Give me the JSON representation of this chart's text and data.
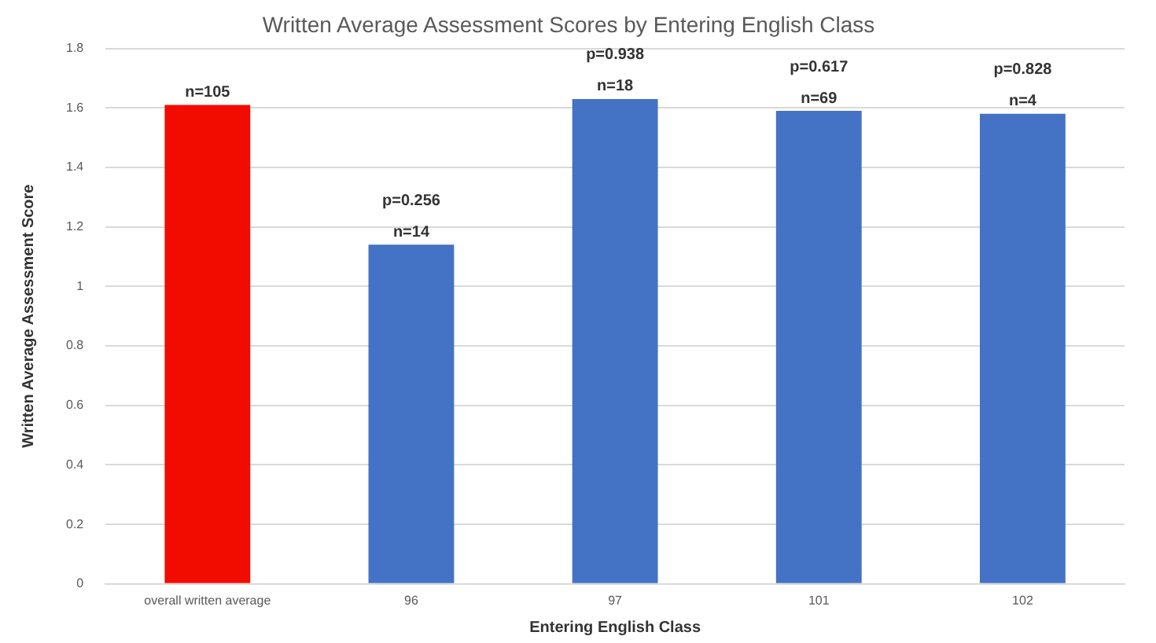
{
  "chart_data": {
    "type": "bar",
    "title": "Written Average Assessment Scores by Entering English Class",
    "xlabel": "Entering English Class",
    "ylabel": "Written Average Assessment Score",
    "categories": [
      "overall written average",
      "96",
      "97",
      "101",
      "102"
    ],
    "values": [
      1.61,
      1.14,
      1.63,
      1.59,
      1.58
    ],
    "colors": [
      "#f20c00",
      "#4472c4",
      "#4472c4",
      "#4472c4",
      "#4472c4"
    ],
    "ylim": [
      0,
      1.8
    ],
    "yticks": [
      0,
      0.2,
      0.4,
      0.6,
      0.8,
      1,
      1.2,
      1.4,
      1.6,
      1.8
    ],
    "grid": "y",
    "legend": false,
    "annotations": [
      {
        "text": "n=105",
        "x": "overall written average",
        "y": 1.61
      },
      {
        "text": "p=0.256",
        "x": "96",
        "y": 1.14
      },
      {
        "text": "n=14",
        "x": "96",
        "y": 1.14
      },
      {
        "text": "p=0.938",
        "x": "97",
        "y": 1.63
      },
      {
        "text": "n=18",
        "x": "97",
        "y": 1.63
      },
      {
        "text": "p=0.617",
        "x": "101",
        "y": 1.59
      },
      {
        "text": "n=69",
        "x": "101",
        "y": 1.59
      },
      {
        "text": "p=0.828",
        "x": "102",
        "y": 1.58
      },
      {
        "text": "n=4",
        "x": "102",
        "y": 1.58
      }
    ]
  }
}
